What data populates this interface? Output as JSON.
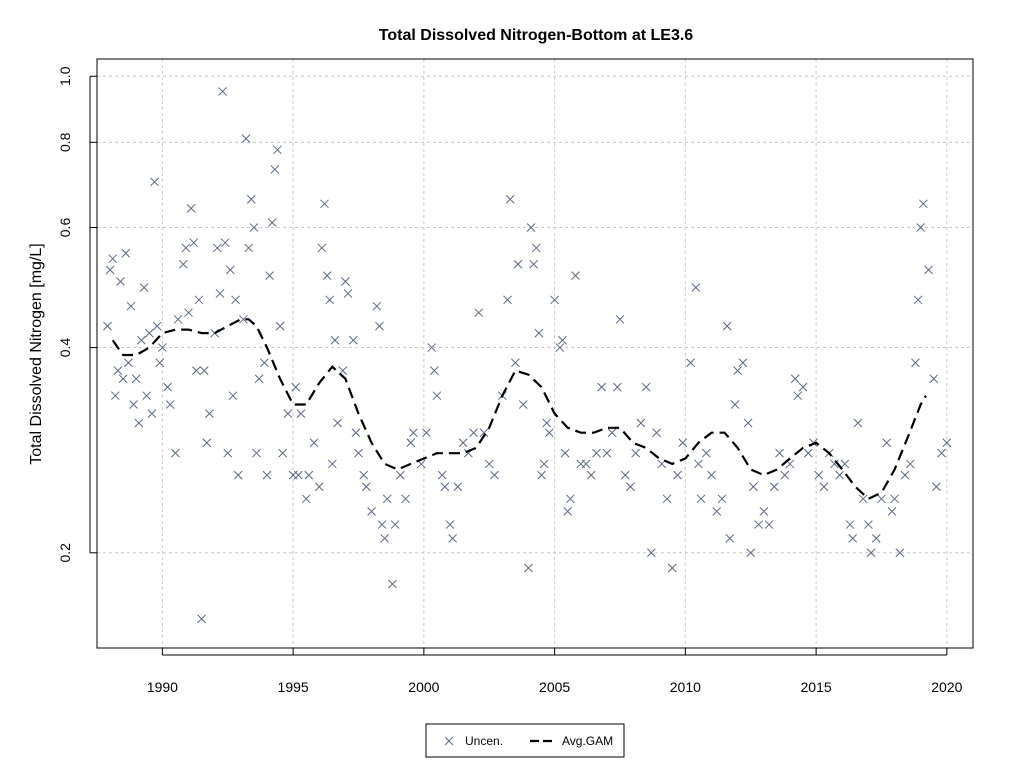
{
  "chart_data": {
    "type": "scatter",
    "title": "Total Dissolved Nitrogen-Bottom at LE3.6",
    "xlabel": "",
    "ylabel": "Total Dissolved Nitrogen [mg/L]",
    "y_scale": "log",
    "xlim": [
      1987.5,
      2021.0
    ],
    "ylim": [
      0.145,
      1.06
    ],
    "x_ticks": [
      1990,
      1995,
      2000,
      2005,
      2010,
      2015,
      2020
    ],
    "y_ticks": [
      0.2,
      0.4,
      0.6,
      0.8,
      1.0
    ],
    "x_tick_labels": [
      "1990",
      "1995",
      "2000",
      "2005",
      "2010",
      "2015",
      "2020"
    ],
    "y_tick_labels": [
      "0.2",
      "0.4",
      "0.6",
      "0.8",
      "1.0"
    ],
    "grid": true,
    "legend": {
      "placement": "bottom-center",
      "entries": [
        "Uncen.",
        "Avg.GAM"
      ]
    },
    "series": [
      {
        "name": "Uncen.",
        "marker": "x",
        "color": "#5a6a85",
        "points": [
          [
            1987.9,
            0.43
          ],
          [
            1988.0,
            0.52
          ],
          [
            1988.1,
            0.54
          ],
          [
            1988.2,
            0.34
          ],
          [
            1988.3,
            0.37
          ],
          [
            1988.4,
            0.5
          ],
          [
            1988.5,
            0.36
          ],
          [
            1988.6,
            0.55
          ],
          [
            1988.7,
            0.38
          ],
          [
            1988.8,
            0.46
          ],
          [
            1988.9,
            0.33
          ],
          [
            1989.0,
            0.36
          ],
          [
            1989.1,
            0.31
          ],
          [
            1989.2,
            0.41
          ],
          [
            1989.3,
            0.49
          ],
          [
            1989.4,
            0.34
          ],
          [
            1989.5,
            0.42
          ],
          [
            1989.6,
            0.32
          ],
          [
            1989.7,
            0.7
          ],
          [
            1989.8,
            0.43
          ],
          [
            1989.9,
            0.38
          ],
          [
            1990.0,
            0.4
          ],
          [
            1990.2,
            0.35
          ],
          [
            1990.3,
            0.33
          ],
          [
            1990.5,
            0.28
          ],
          [
            1990.6,
            0.44
          ],
          [
            1990.8,
            0.53
          ],
          [
            1990.9,
            0.56
          ],
          [
            1991.0,
            0.45
          ],
          [
            1991.1,
            0.64
          ],
          [
            1991.2,
            0.57
          ],
          [
            1991.3,
            0.37
          ],
          [
            1991.4,
            0.47
          ],
          [
            1991.5,
            0.16
          ],
          [
            1991.6,
            0.37
          ],
          [
            1991.7,
            0.29
          ],
          [
            1991.8,
            0.32
          ],
          [
            1992.0,
            0.42
          ],
          [
            1992.1,
            0.56
          ],
          [
            1992.2,
            0.48
          ],
          [
            1992.3,
            0.95
          ],
          [
            1992.4,
            0.57
          ],
          [
            1992.5,
            0.28
          ],
          [
            1992.6,
            0.52
          ],
          [
            1992.7,
            0.34
          ],
          [
            1992.8,
            0.47
          ],
          [
            1992.9,
            0.26
          ],
          [
            1993.1,
            0.44
          ],
          [
            1993.2,
            0.81
          ],
          [
            1993.3,
            0.56
          ],
          [
            1993.4,
            0.66
          ],
          [
            1993.5,
            0.6
          ],
          [
            1993.6,
            0.28
          ],
          [
            1993.7,
            0.36
          ],
          [
            1993.9,
            0.38
          ],
          [
            1994.0,
            0.26
          ],
          [
            1994.1,
            0.51
          ],
          [
            1994.2,
            0.61
          ],
          [
            1994.3,
            0.73
          ],
          [
            1994.4,
            0.78
          ],
          [
            1994.5,
            0.43
          ],
          [
            1994.6,
            0.28
          ],
          [
            1994.8,
            0.32
          ],
          [
            1995.0,
            0.26
          ],
          [
            1995.1,
            0.35
          ],
          [
            1995.2,
            0.26
          ],
          [
            1995.3,
            0.32
          ],
          [
            1995.5,
            0.24
          ],
          [
            1995.6,
            0.26
          ],
          [
            1995.8,
            0.29
          ],
          [
            1996.0,
            0.25
          ],
          [
            1996.1,
            0.56
          ],
          [
            1996.2,
            0.65
          ],
          [
            1996.3,
            0.51
          ],
          [
            1996.4,
            0.47
          ],
          [
            1996.5,
            0.27
          ],
          [
            1996.6,
            0.41
          ],
          [
            1996.7,
            0.31
          ],
          [
            1996.9,
            0.37
          ],
          [
            1997.0,
            0.5
          ],
          [
            1997.1,
            0.48
          ],
          [
            1997.3,
            0.41
          ],
          [
            1997.4,
            0.3
          ],
          [
            1997.5,
            0.28
          ],
          [
            1997.7,
            0.26
          ],
          [
            1997.8,
            0.25
          ],
          [
            1998.0,
            0.23
          ],
          [
            1998.2,
            0.46
          ],
          [
            1998.3,
            0.43
          ],
          [
            1998.4,
            0.22
          ],
          [
            1998.5,
            0.21
          ],
          [
            1998.6,
            0.24
          ],
          [
            1998.8,
            0.18
          ],
          [
            1998.9,
            0.22
          ],
          [
            1999.1,
            0.26
          ],
          [
            1999.3,
            0.24
          ],
          [
            1999.5,
            0.29
          ],
          [
            1999.6,
            0.3
          ],
          [
            1999.9,
            0.27
          ],
          [
            2000.1,
            0.3
          ],
          [
            2000.3,
            0.4
          ],
          [
            2000.4,
            0.37
          ],
          [
            2000.5,
            0.34
          ],
          [
            2000.7,
            0.26
          ],
          [
            2000.8,
            0.25
          ],
          [
            2001.0,
            0.22
          ],
          [
            2001.1,
            0.21
          ],
          [
            2001.3,
            0.25
          ],
          [
            2001.5,
            0.29
          ],
          [
            2001.7,
            0.28
          ],
          [
            2001.9,
            0.3
          ],
          [
            2002.1,
            0.45
          ],
          [
            2002.3,
            0.3
          ],
          [
            2002.5,
            0.27
          ],
          [
            2002.7,
            0.26
          ],
          [
            2003.0,
            0.34
          ],
          [
            2003.2,
            0.47
          ],
          [
            2003.3,
            0.66
          ],
          [
            2003.5,
            0.38
          ],
          [
            2003.6,
            0.53
          ],
          [
            2003.8,
            0.33
          ],
          [
            2004.0,
            0.19
          ],
          [
            2004.1,
            0.6
          ],
          [
            2004.2,
            0.53
          ],
          [
            2004.3,
            0.56
          ],
          [
            2004.4,
            0.42
          ],
          [
            2004.5,
            0.26
          ],
          [
            2004.6,
            0.27
          ],
          [
            2004.7,
            0.31
          ],
          [
            2004.8,
            0.3
          ],
          [
            2005.0,
            0.47
          ],
          [
            2005.2,
            0.4
          ],
          [
            2005.3,
            0.41
          ],
          [
            2005.4,
            0.28
          ],
          [
            2005.5,
            0.23
          ],
          [
            2005.6,
            0.24
          ],
          [
            2005.8,
            0.51
          ],
          [
            2006.0,
            0.27
          ],
          [
            2006.2,
            0.27
          ],
          [
            2006.4,
            0.26
          ],
          [
            2006.6,
            0.28
          ],
          [
            2006.8,
            0.35
          ],
          [
            2007.0,
            0.28
          ],
          [
            2007.2,
            0.3
          ],
          [
            2007.4,
            0.35
          ],
          [
            2007.5,
            0.44
          ],
          [
            2007.7,
            0.26
          ],
          [
            2007.9,
            0.25
          ],
          [
            2008.1,
            0.28
          ],
          [
            2008.3,
            0.31
          ],
          [
            2008.5,
            0.35
          ],
          [
            2008.7,
            0.2
          ],
          [
            2008.9,
            0.3
          ],
          [
            2009.1,
            0.27
          ],
          [
            2009.3,
            0.24
          ],
          [
            2009.5,
            0.19
          ],
          [
            2009.7,
            0.26
          ],
          [
            2009.9,
            0.29
          ],
          [
            2010.2,
            0.38
          ],
          [
            2010.4,
            0.49
          ],
          [
            2010.5,
            0.27
          ],
          [
            2010.6,
            0.24
          ],
          [
            2010.8,
            0.28
          ],
          [
            2011.0,
            0.26
          ],
          [
            2011.2,
            0.23
          ],
          [
            2011.4,
            0.24
          ],
          [
            2011.6,
            0.43
          ],
          [
            2011.7,
            0.21
          ],
          [
            2011.9,
            0.33
          ],
          [
            2012.0,
            0.37
          ],
          [
            2012.2,
            0.38
          ],
          [
            2012.4,
            0.31
          ],
          [
            2012.5,
            0.2
          ],
          [
            2012.6,
            0.25
          ],
          [
            2012.8,
            0.22
          ],
          [
            2013.0,
            0.23
          ],
          [
            2013.2,
            0.22
          ],
          [
            2013.4,
            0.25
          ],
          [
            2013.6,
            0.28
          ],
          [
            2013.8,
            0.26
          ],
          [
            2014.0,
            0.27
          ],
          [
            2014.2,
            0.36
          ],
          [
            2014.3,
            0.34
          ],
          [
            2014.5,
            0.35
          ],
          [
            2014.7,
            0.28
          ],
          [
            2014.9,
            0.29
          ],
          [
            2015.1,
            0.26
          ],
          [
            2015.3,
            0.25
          ],
          [
            2015.5,
            0.28
          ],
          [
            2015.7,
            0.27
          ],
          [
            2015.9,
            0.26
          ],
          [
            2016.1,
            0.27
          ],
          [
            2016.3,
            0.22
          ],
          [
            2016.4,
            0.21
          ],
          [
            2016.6,
            0.31
          ],
          [
            2016.8,
            0.24
          ],
          [
            2017.0,
            0.22
          ],
          [
            2017.1,
            0.2
          ],
          [
            2017.3,
            0.21
          ],
          [
            2017.5,
            0.24
          ],
          [
            2017.7,
            0.29
          ],
          [
            2017.9,
            0.23
          ],
          [
            2018.0,
            0.24
          ],
          [
            2018.2,
            0.2
          ],
          [
            2018.4,
            0.26
          ],
          [
            2018.6,
            0.27
          ],
          [
            2018.8,
            0.38
          ],
          [
            2018.9,
            0.47
          ],
          [
            2019.0,
            0.6
          ],
          [
            2019.1,
            0.65
          ],
          [
            2019.3,
            0.52
          ],
          [
            2019.5,
            0.36
          ],
          [
            2019.6,
            0.25
          ],
          [
            2019.8,
            0.28
          ],
          [
            2020.0,
            0.29
          ]
        ]
      },
      {
        "name": "Avg.GAM",
        "style": "dashed",
        "color": "#000000",
        "points": [
          [
            1988.1,
            0.41
          ],
          [
            1988.5,
            0.39
          ],
          [
            1989.0,
            0.39
          ],
          [
            1989.5,
            0.4
          ],
          [
            1990.0,
            0.42
          ],
          [
            1990.5,
            0.425
          ],
          [
            1991.0,
            0.425
          ],
          [
            1991.5,
            0.42
          ],
          [
            1992.0,
            0.42
          ],
          [
            1992.5,
            0.43
          ],
          [
            1993.0,
            0.44
          ],
          [
            1993.3,
            0.44
          ],
          [
            1993.6,
            0.43
          ],
          [
            1994.0,
            0.4
          ],
          [
            1994.5,
            0.36
          ],
          [
            1995.0,
            0.33
          ],
          [
            1995.5,
            0.33
          ],
          [
            1996.0,
            0.355
          ],
          [
            1996.5,
            0.375
          ],
          [
            1997.0,
            0.36
          ],
          [
            1997.5,
            0.32
          ],
          [
            1998.0,
            0.29
          ],
          [
            1998.5,
            0.27
          ],
          [
            1999.0,
            0.265
          ],
          [
            1999.5,
            0.27
          ],
          [
            2000.0,
            0.275
          ],
          [
            2000.5,
            0.28
          ],
          [
            2001.0,
            0.28
          ],
          [
            2001.5,
            0.28
          ],
          [
            2002.0,
            0.285
          ],
          [
            2002.5,
            0.305
          ],
          [
            2003.0,
            0.34
          ],
          [
            2003.5,
            0.37
          ],
          [
            2004.0,
            0.365
          ],
          [
            2004.5,
            0.35
          ],
          [
            2005.0,
            0.32
          ],
          [
            2005.5,
            0.305
          ],
          [
            2006.0,
            0.3
          ],
          [
            2006.5,
            0.3
          ],
          [
            2007.0,
            0.305
          ],
          [
            2007.5,
            0.305
          ],
          [
            2008.0,
            0.29
          ],
          [
            2008.5,
            0.285
          ],
          [
            2009.0,
            0.275
          ],
          [
            2009.5,
            0.27
          ],
          [
            2010.0,
            0.275
          ],
          [
            2010.5,
            0.29
          ],
          [
            2011.0,
            0.3
          ],
          [
            2011.5,
            0.3
          ],
          [
            2012.0,
            0.285
          ],
          [
            2012.5,
            0.265
          ],
          [
            2013.0,
            0.26
          ],
          [
            2013.5,
            0.265
          ],
          [
            2014.0,
            0.275
          ],
          [
            2014.5,
            0.285
          ],
          [
            2015.0,
            0.29
          ],
          [
            2015.5,
            0.28
          ],
          [
            2016.0,
            0.265
          ],
          [
            2016.5,
            0.25
          ],
          [
            2017.0,
            0.24
          ],
          [
            2017.5,
            0.245
          ],
          [
            2018.0,
            0.265
          ],
          [
            2018.5,
            0.295
          ],
          [
            2019.0,
            0.33
          ],
          [
            2019.2,
            0.34
          ]
        ]
      }
    ]
  }
}
